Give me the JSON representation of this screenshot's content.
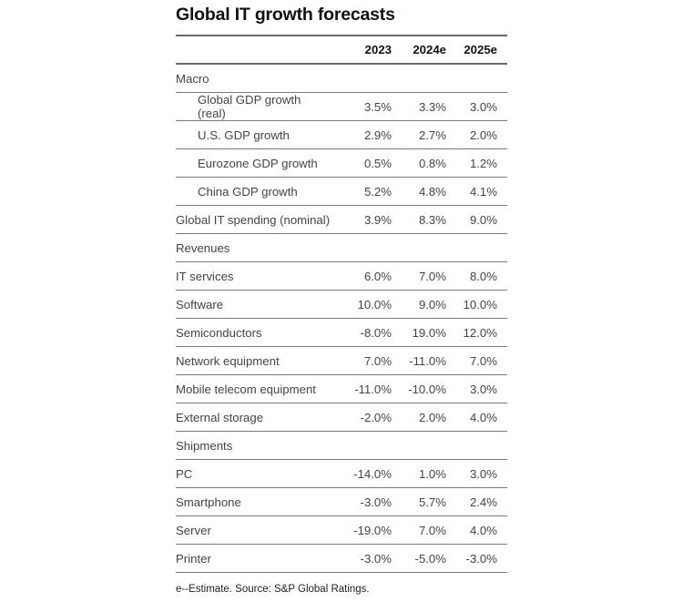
{
  "title": "Global IT growth forecasts",
  "columns": [
    "",
    "2023",
    "2024e",
    "2025e"
  ],
  "sections": [
    {
      "label": "Macro",
      "rows": [
        {
          "label": "Global GDP growth (real)",
          "indent": true,
          "values": [
            "3.5%",
            "3.3%",
            "3.0%"
          ]
        },
        {
          "label": "U.S. GDP growth",
          "indent": true,
          "values": [
            "2.9%",
            "2.7%",
            "2.0%"
          ]
        },
        {
          "label": "Eurozone GDP growth",
          "indent": true,
          "values": [
            "0.5%",
            "0.8%",
            "1.2%"
          ]
        },
        {
          "label": "China GDP growth",
          "indent": true,
          "values": [
            "5.2%",
            "4.8%",
            "4.1%"
          ]
        },
        {
          "label": "Global IT spending (nominal)",
          "indent": false,
          "values": [
            "3.9%",
            "8.3%",
            "9.0%"
          ]
        }
      ]
    },
    {
      "label": "Revenues",
      "rows": [
        {
          "label": "IT services",
          "indent": false,
          "values": [
            "6.0%",
            "7.0%",
            "8.0%"
          ]
        },
        {
          "label": "Software",
          "indent": false,
          "values": [
            "10.0%",
            "9.0%",
            "10.0%"
          ]
        },
        {
          "label": "Semiconductors",
          "indent": false,
          "values": [
            "-8.0%",
            "19.0%",
            "12.0%"
          ]
        },
        {
          "label": "Network equipment",
          "indent": false,
          "values": [
            "7.0%",
            "-11.0%",
            "7.0%"
          ]
        },
        {
          "label": "Mobile telecom equipment",
          "indent": false,
          "values": [
            "-11.0%",
            "-10.0%",
            "3.0%"
          ]
        },
        {
          "label": "External storage",
          "indent": false,
          "values": [
            "-2.0%",
            "2.0%",
            "4.0%"
          ]
        }
      ]
    },
    {
      "label": "Shipments",
      "rows": [
        {
          "label": "PC",
          "indent": false,
          "values": [
            "-14.0%",
            "1.0%",
            "3.0%"
          ]
        },
        {
          "label": "Smartphone",
          "indent": false,
          "values": [
            "-3.0%",
            "5.7%",
            "2.4%"
          ]
        },
        {
          "label": "Server",
          "indent": false,
          "values": [
            "-19.0%",
            "7.0%",
            "4.0%"
          ]
        },
        {
          "label": "Printer",
          "indent": false,
          "values": [
            "-3.0%",
            "-5.0%",
            "-3.0%"
          ]
        }
      ]
    }
  ],
  "footnote": "e--Estimate. Source: S&P Global Ratings."
}
